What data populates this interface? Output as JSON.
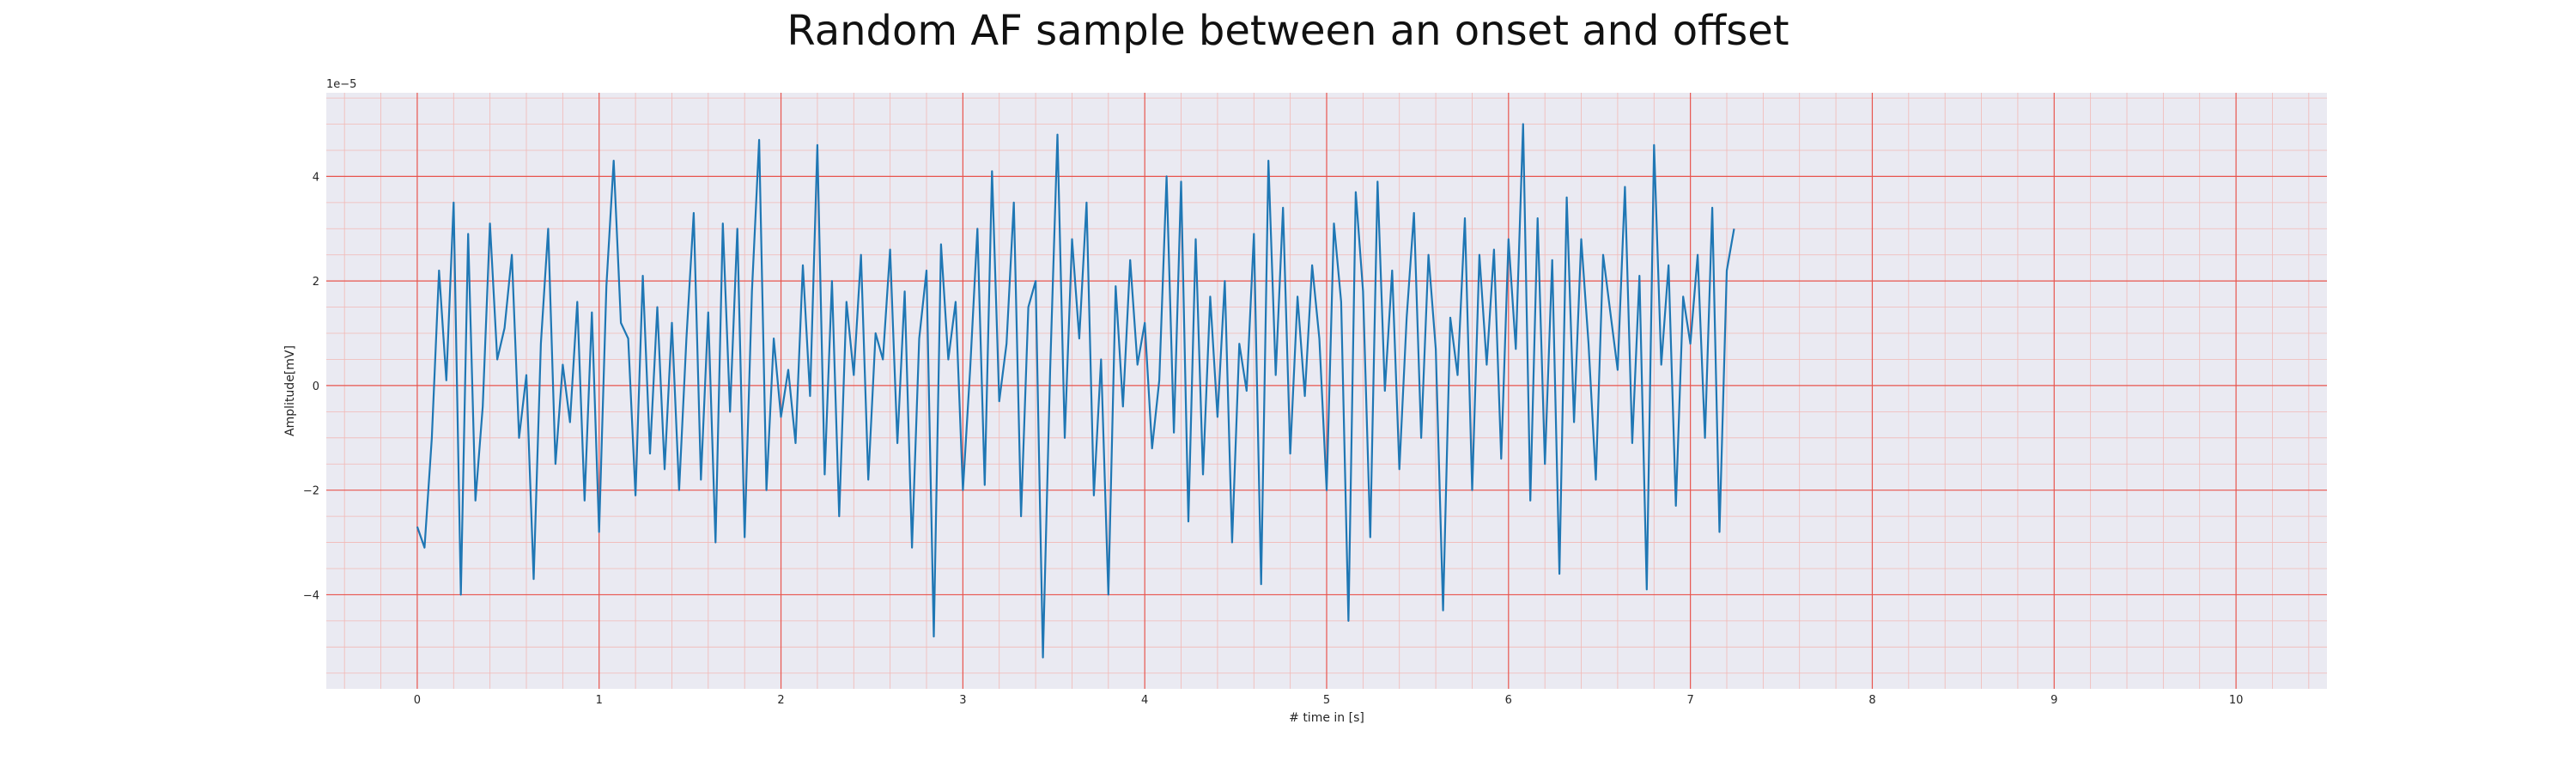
{
  "chart_data": {
    "type": "line",
    "title": "Random AF sample between an onset and offset",
    "xlabel": "# time in [s]",
    "ylabel": "Amplitude[mV]",
    "y_scale_label": "1e−5",
    "xlim": [
      -0.5,
      10.5
    ],
    "ylim": [
      -5.8,
      5.6
    ],
    "x_ticks": [
      0,
      1,
      2,
      3,
      4,
      5,
      6,
      7,
      8,
      9,
      10
    ],
    "x_tick_labels": [
      "0",
      "1",
      "2",
      "3",
      "4",
      "5",
      "6",
      "7",
      "8",
      "9",
      "10"
    ],
    "y_ticks": [
      -4,
      -2,
      0,
      2,
      4
    ],
    "y_tick_labels": [
      "−4",
      "−2",
      "0",
      "2",
      "4"
    ],
    "grid": true,
    "minor_grid": true,
    "colors": {
      "plot_background": "#eaeaf2",
      "major_grid": "#e8554e",
      "minor_grid": "#f2b8b5",
      "line": "#1f77b4"
    },
    "series": [
      {
        "x_start": 0,
        "x_step": 0.04,
        "values": [
          -2.7,
          -3.1,
          -1.0,
          2.2,
          0.1,
          3.5,
          -4.0,
          2.9,
          -2.2,
          -0.4,
          3.1,
          0.5,
          1.1,
          2.5,
          -1.0,
          0.2,
          -3.7,
          0.8,
          3.0,
          -1.5,
          0.4,
          -0.7,
          1.6,
          -2.2,
          1.4,
          -2.8,
          1.9,
          4.3,
          1.2,
          0.9,
          -2.1,
          2.1,
          -1.3,
          1.5,
          -1.6,
          1.2,
          -2.0,
          0.9,
          3.3,
          -1.8,
          1.4,
          -3.0,
          3.1,
          -0.5,
          3.0,
          -2.9,
          1.8,
          4.7,
          -2.0,
          0.9,
          -0.6,
          0.3,
          -1.1,
          2.3,
          -0.2,
          4.6,
          -1.7,
          2.0,
          -2.5,
          1.6,
          0.2,
          2.5,
          -1.8,
          1.0,
          0.5,
          2.6,
          -1.1,
          1.8,
          -3.1,
          0.9,
          2.2,
          -4.8,
          2.7,
          0.5,
          1.6,
          -2.0,
          0.3,
          3.0,
          -1.9,
          4.1,
          -0.3,
          0.8,
          3.5,
          -2.5,
          1.5,
          2.0,
          -5.2,
          0.3,
          4.8,
          -1.0,
          2.8,
          0.9,
          3.5,
          -2.1,
          0.5,
          -4.0,
          1.9,
          -0.4,
          2.4,
          0.4,
          1.2,
          -1.2,
          0.1,
          4.0,
          -0.9,
          3.9,
          -2.6,
          2.8,
          -1.7,
          1.7,
          -0.6,
          2.0,
          -3.0,
          0.8,
          -0.1,
          2.9,
          -3.8,
          4.3,
          0.2,
          3.4,
          -1.3,
          1.7,
          -0.2,
          2.3,
          0.9,
          -2.0,
          3.1,
          1.6,
          -4.5,
          3.7,
          1.8,
          -2.9,
          3.9,
          -0.1,
          2.2,
          -1.6,
          1.3,
          3.3,
          -1.0,
          2.5,
          0.7,
          -4.3,
          1.3,
          0.2,
          3.2,
          -2.0,
          2.5,
          0.4,
          2.6,
          -1.4,
          2.8,
          0.7,
          5.0,
          -2.2,
          3.2,
          -1.5,
          2.4,
          -3.6,
          3.6,
          -0.7,
          2.8,
          0.8,
          -1.8,
          2.5,
          1.4,
          0.3,
          3.8,
          -1.1,
          2.1,
          -3.9,
          4.6,
          0.4,
          2.3,
          -2.3,
          1.7,
          0.8,
          2.5,
          -1.0,
          3.4,
          -2.8,
          2.2,
          3.0
        ]
      }
    ]
  }
}
